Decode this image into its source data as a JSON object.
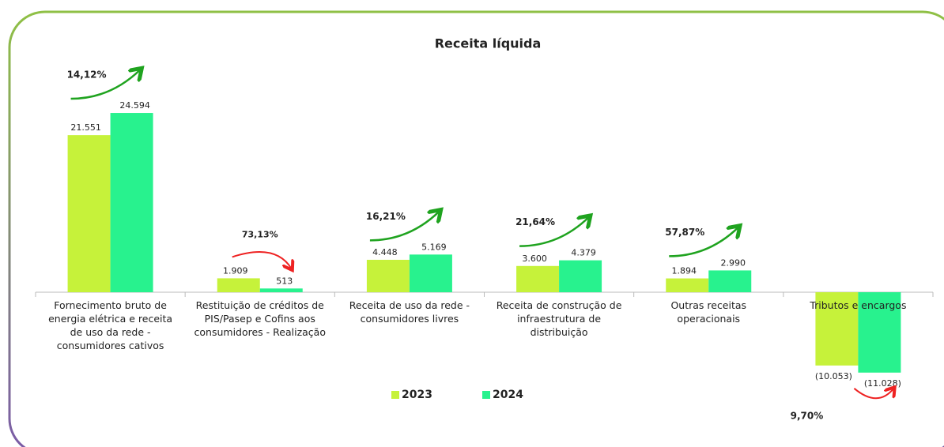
{
  "chart_data": {
    "type": "bar",
    "title": "Receita líquida",
    "categories": [
      "Fornecimento bruto de\nenergia elétrica e receita\nde uso da rede -\nconsumidores cativos",
      "Restituição de créditos de\nPIS/Pasep e Cofins aos\nconsumidores - Realização",
      "Receita de uso da rede -\nconsumidores livres",
      "Receita de construção de\ninfraestrutura de\ndistribuição",
      "Outras receitas\noperacionais",
      "Tributos e encargos"
    ],
    "series": [
      {
        "name": "2023",
        "color": "#c6f23a",
        "values": [
          21551,
          1909,
          4448,
          3600,
          1894,
          -10053
        ],
        "value_labels": [
          "21.551",
          "1.909",
          "4.448",
          "3.600",
          "1.894",
          "(10.053)"
        ]
      },
      {
        "name": "2024",
        "color": "#28f28e",
        "values": [
          24594,
          513,
          5169,
          4379,
          2990,
          -11028
        ],
        "value_labels": [
          "24.594",
          "513",
          "5.169",
          "4.379",
          "2.990",
          "(11.028)"
        ]
      }
    ],
    "annotations": [
      {
        "text": "14,12%",
        "color": "#1fa31f",
        "direction": "up"
      },
      {
        "text": "73,13%",
        "color": "#ee2222",
        "direction": "down"
      },
      {
        "text": "16,21%",
        "color": "#1fa31f",
        "direction": "up"
      },
      {
        "text": "21,64%",
        "color": "#1fa31f",
        "direction": "up"
      },
      {
        "text": "57,87%",
        "color": "#1fa31f",
        "direction": "up"
      },
      {
        "text": "9,70%",
        "color": "#ee2222",
        "direction": "down"
      }
    ],
    "ylim": [
      -20000,
      35000
    ],
    "legend": "bottom"
  }
}
